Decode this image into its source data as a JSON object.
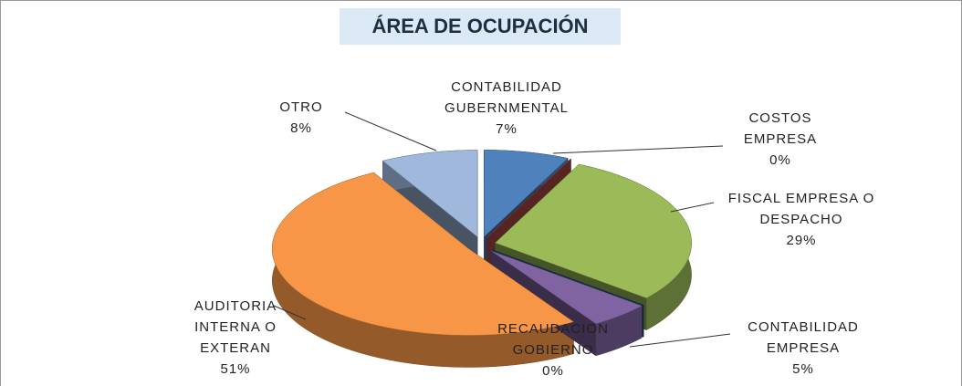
{
  "chart_data": {
    "type": "pie3d",
    "title": "ÁREA DE OCUPACIÓN",
    "categories": [
      "CONTABILIDAD GUBERNMENTAL",
      "COSTOS EMPRESA",
      "FISCAL EMPRESA O DESPACHO",
      "RECAUDACION GOBIERNO",
      "CONTABILIDAD EMPRESA",
      "AUDITORIA INTERNA O EXTERAN",
      "OTRO"
    ],
    "values": [
      7,
      0,
      29,
      0,
      5,
      51,
      8
    ],
    "value_labels": [
      "7%",
      "0%",
      "29%",
      "0%",
      "5%",
      "51%",
      "8%"
    ],
    "colors": [
      "#4f81bd",
      "#c0504d",
      "#9bbb59",
      "#1f5a6e",
      "#8064a2",
      "#f79646",
      "#9fb8dc"
    ]
  }
}
